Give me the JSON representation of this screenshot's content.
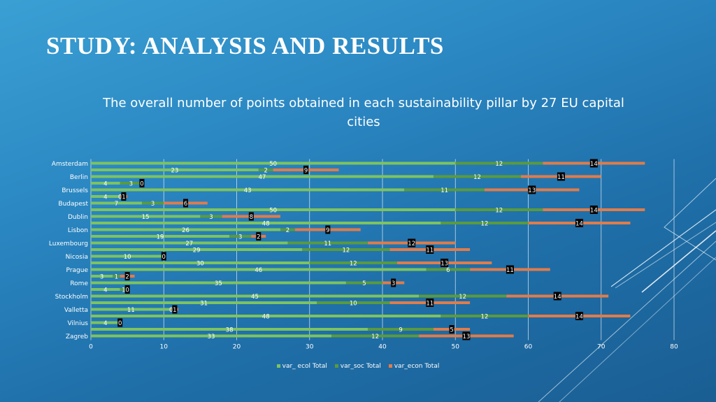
{
  "slide": {
    "title": "STUDY: ANALYSIS AND RESULTS"
  },
  "colors": {
    "ecol": "#7ec35e",
    "soc": "#5a9a3c",
    "econ": "#e07c4a",
    "grid": "#ffffff",
    "text": "#ffffff"
  },
  "chart_data": {
    "type": "bar",
    "orientation": "horizontal",
    "stacked": true,
    "title": "The overall number of points obtained in each sustainability pillar by 27 EU capital cities",
    "xlim": [
      0,
      80
    ],
    "xticks": [
      0,
      10,
      20,
      30,
      40,
      50,
      60,
      70,
      80
    ],
    "grid": true,
    "legend_position": "bottom",
    "categories": [
      "Amsterdam",
      "",
      "Berlin",
      "",
      "Brussels",
      "",
      "Budapest",
      "",
      "Dublin",
      "",
      "Lisbon",
      "",
      "Luxembourg",
      "",
      "Nicosia",
      "",
      "Prague",
      "",
      "Rome",
      "",
      "Stockholm",
      "",
      "Valletta",
      "",
      "Vilnius",
      "",
      "Zagreb"
    ],
    "series": [
      {
        "name": "var_ ecol Total",
        "values": [
          50,
          23,
          47,
          4,
          43,
          4,
          7,
          50,
          15,
          48,
          26,
          19,
          27,
          29,
          10,
          30,
          46,
          3,
          35,
          4,
          45,
          31,
          11,
          48,
          4,
          38,
          33
        ]
      },
      {
        "name": "var_soc Total",
        "values": [
          12,
          2,
          12,
          3,
          11,
          0,
          3,
          12,
          3,
          12,
          2,
          3,
          11,
          12,
          0,
          12,
          6,
          1,
          5,
          1,
          12,
          10,
          0,
          12,
          0,
          9,
          12
        ]
      },
      {
        "name": "var_econ Total",
        "values": [
          14,
          9,
          11,
          0,
          13,
          1,
          6,
          14,
          8,
          14,
          9,
          2,
          12,
          11,
          0,
          13,
          11,
          2,
          3,
          0,
          14,
          11,
          1,
          14,
          0,
          5,
          13
        ]
      }
    ]
  }
}
